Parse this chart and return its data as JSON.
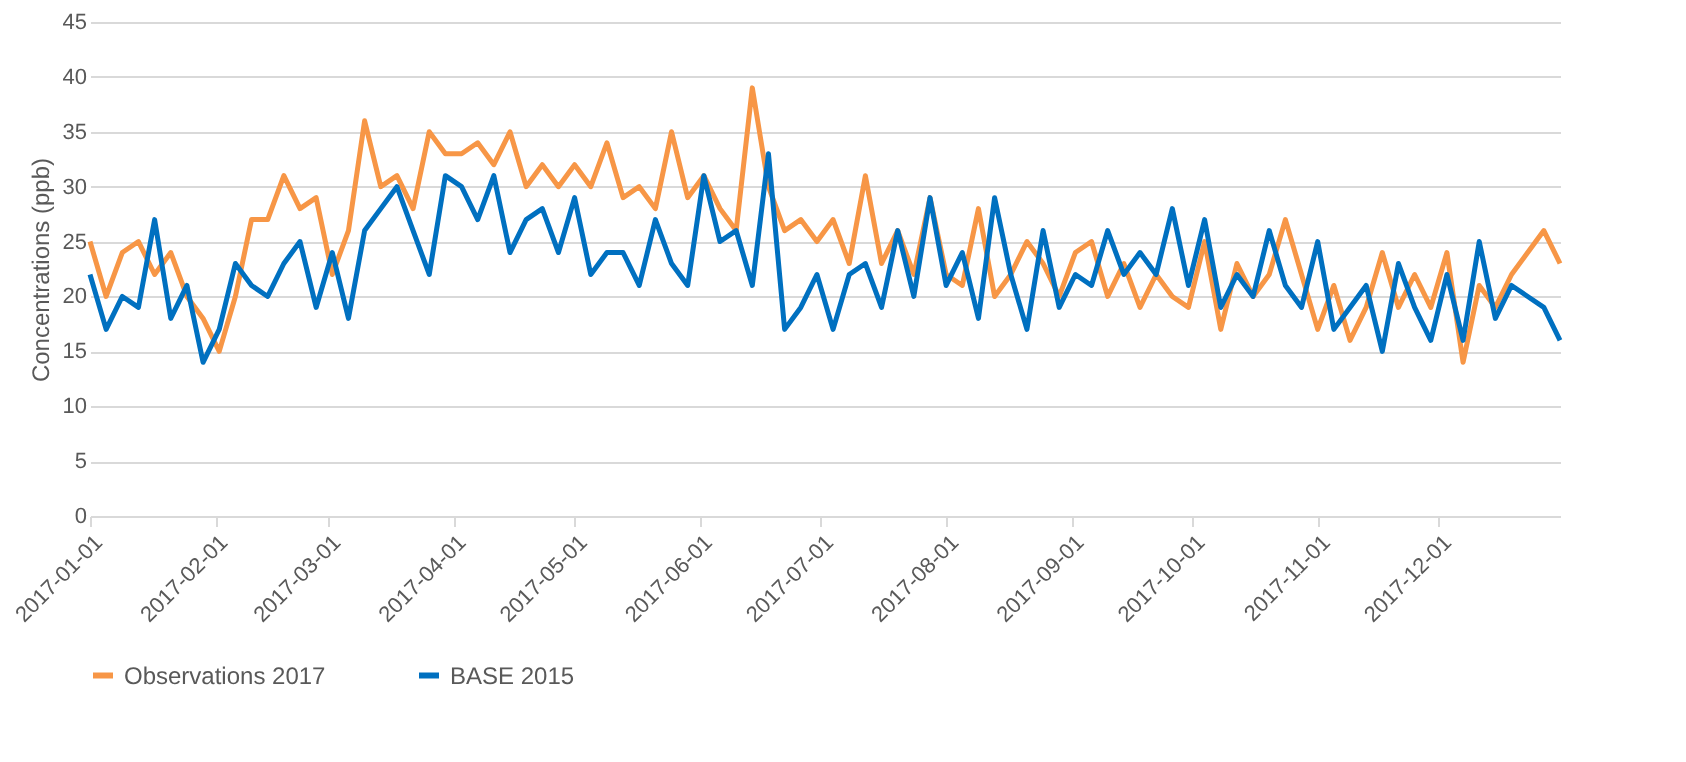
{
  "chart_data": {
    "type": "line",
    "ylabel": "Concentrations (ppb)",
    "x": [
      "2017-01-01",
      "2017-01-05",
      "2017-01-09",
      "2017-01-13",
      "2017-01-17",
      "2017-01-21",
      "2017-01-25",
      "2017-01-29",
      "2017-02-02",
      "2017-02-06",
      "2017-02-10",
      "2017-02-14",
      "2017-02-18",
      "2017-02-22",
      "2017-02-26",
      "2017-03-02",
      "2017-03-06",
      "2017-03-10",
      "2017-03-14",
      "2017-03-18",
      "2017-03-22",
      "2017-03-26",
      "2017-03-30",
      "2017-04-03",
      "2017-04-07",
      "2017-04-11",
      "2017-04-15",
      "2017-04-19",
      "2017-04-23",
      "2017-04-27",
      "2017-05-01",
      "2017-05-05",
      "2017-05-09",
      "2017-05-13",
      "2017-05-17",
      "2017-05-21",
      "2017-05-25",
      "2017-05-29",
      "2017-06-02",
      "2017-06-06",
      "2017-06-10",
      "2017-06-14",
      "2017-06-18",
      "2017-06-22",
      "2017-06-26",
      "2017-06-30",
      "2017-07-04",
      "2017-07-08",
      "2017-07-12",
      "2017-07-16",
      "2017-07-20",
      "2017-07-24",
      "2017-07-28",
      "2017-08-01",
      "2017-08-05",
      "2017-08-09",
      "2017-08-13",
      "2017-08-17",
      "2017-08-21",
      "2017-08-25",
      "2017-08-29",
      "2017-09-02",
      "2017-09-06",
      "2017-09-10",
      "2017-09-14",
      "2017-09-18",
      "2017-09-22",
      "2017-09-26",
      "2017-09-30",
      "2017-10-04",
      "2017-10-08",
      "2017-10-12",
      "2017-10-16",
      "2017-10-20",
      "2017-10-24",
      "2017-10-28",
      "2017-11-01",
      "2017-11-05",
      "2017-11-09",
      "2017-11-13",
      "2017-11-17",
      "2017-11-21",
      "2017-11-25",
      "2017-11-29",
      "2017-12-03",
      "2017-12-07",
      "2017-12-11",
      "2017-12-15",
      "2017-12-19",
      "2017-12-23",
      "2017-12-27",
      "2017-12-31"
    ],
    "series": [
      {
        "name": "Observations 2017",
        "color": "#f79646",
        "values": [
          25,
          20,
          24,
          25,
          22,
          24,
          20,
          18,
          15,
          20,
          27,
          27,
          31,
          28,
          29,
          22,
          26,
          36,
          30,
          31,
          28,
          35,
          33,
          33,
          34,
          32,
          35,
          30,
          32,
          30,
          32,
          30,
          34,
          29,
          30,
          28,
          35,
          29,
          31,
          28,
          26,
          39,
          30,
          26,
          27,
          25,
          27,
          23,
          31,
          23,
          26,
          22,
          29,
          22,
          21,
          28,
          20,
          22,
          25,
          23,
          20,
          24,
          25,
          20,
          23,
          19,
          22,
          20,
          19,
          25,
          17,
          23,
          20,
          22,
          27,
          22,
          17,
          21,
          16,
          19,
          24,
          19,
          22,
          19,
          24,
          14,
          21,
          19,
          22,
          24,
          26,
          23
        ]
      },
      {
        "name": "BASE 2015",
        "color": "#0070c0",
        "values": [
          22,
          17,
          20,
          19,
          27,
          18,
          21,
          14,
          17,
          23,
          21,
          20,
          23,
          25,
          19,
          24,
          18,
          26,
          28,
          30,
          26,
          22,
          31,
          30,
          27,
          31,
          24,
          27,
          28,
          24,
          29,
          22,
          24,
          24,
          21,
          27,
          23,
          21,
          31,
          25,
          26,
          21,
          33,
          17,
          19,
          22,
          17,
          22,
          23,
          19,
          26,
          20,
          29,
          21,
          24,
          18,
          29,
          22,
          17,
          26,
          19,
          22,
          21,
          26,
          22,
          24,
          22,
          28,
          21,
          27,
          19,
          22,
          20,
          26,
          21,
          19,
          25,
          17,
          19,
          21,
          15,
          23,
          19,
          16,
          22,
          16,
          25,
          18,
          21,
          20,
          19,
          16
        ]
      }
    ],
    "xlim": [
      "2017-01-01",
      "2017-12-31"
    ],
    "xticks": [
      "2017-01-01",
      "2017-02-01",
      "2017-03-01",
      "2017-04-01",
      "2017-05-01",
      "2017-06-01",
      "2017-07-01",
      "2017-08-01",
      "2017-09-01",
      "2017-10-01",
      "2017-11-01",
      "2017-12-01"
    ],
    "ylim": [
      0,
      45
    ],
    "yticks": [
      0,
      5,
      10,
      15,
      20,
      25,
      30,
      35,
      40,
      45
    ],
    "grid": "y",
    "legend": "bottom",
    "marker": "none",
    "line_style": "solid"
  }
}
